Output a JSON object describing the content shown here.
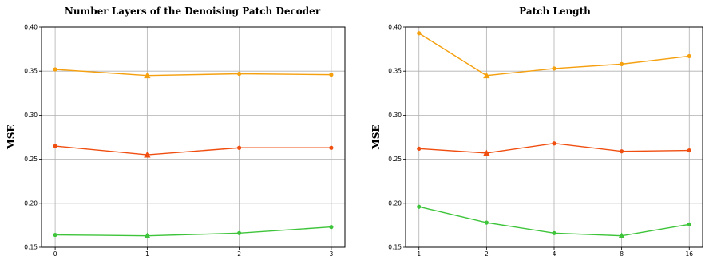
{
  "chart_data": [
    {
      "type": "line",
      "title": "Number Layers of the Denoising Patch Decoder",
      "xlabel": "",
      "ylabel": "MSE",
      "x": [
        "0",
        "1",
        "2",
        "3"
      ],
      "ylim": [
        0.15,
        0.4
      ],
      "yticks": [
        "0.15",
        "0.20",
        "0.25",
        "0.30",
        "0.35",
        "0.40"
      ],
      "grid": true,
      "series": [
        {
          "color": "#f5a00f",
          "values": [
            0.352,
            0.345,
            0.347,
            0.346
          ],
          "highlight_index": 1
        },
        {
          "color": "#f04e10",
          "values": [
            0.265,
            0.255,
            0.263,
            0.263
          ],
          "highlight_index": 1
        },
        {
          "color": "#3ec43a",
          "values": [
            0.164,
            0.163,
            0.166,
            0.173
          ],
          "highlight_index": 1
        }
      ]
    },
    {
      "type": "line",
      "title": "Patch Length",
      "xlabel": "",
      "ylabel": "MSE",
      "x": [
        "1",
        "2",
        "4",
        "8",
        "16"
      ],
      "ylim": [
        0.15,
        0.4
      ],
      "yticks": [
        "0.15",
        "0.20",
        "0.25",
        "0.30",
        "0.35",
        "0.40"
      ],
      "grid": true,
      "series": [
        {
          "color": "#f5a00f",
          "values": [
            0.393,
            0.345,
            0.353,
            0.358,
            0.367
          ],
          "highlight_index": 1
        },
        {
          "color": "#f04e10",
          "values": [
            0.262,
            0.257,
            0.268,
            0.259,
            0.26
          ],
          "highlight_index": 1
        },
        {
          "color": "#3ec43a",
          "values": [
            0.196,
            0.178,
            0.166,
            0.163,
            0.176
          ],
          "highlight_index": 3
        }
      ]
    }
  ]
}
